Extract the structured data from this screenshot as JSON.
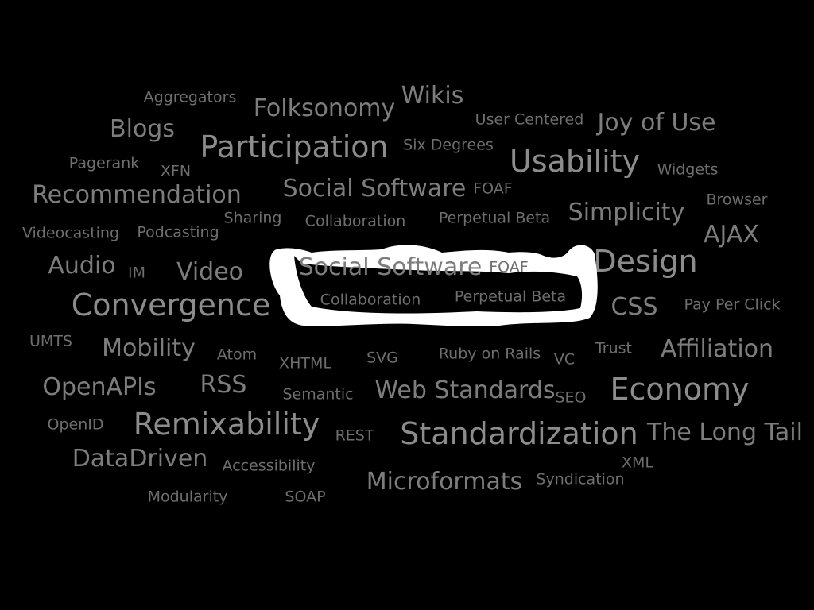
{
  "colors": {
    "background": "#000000",
    "tier_1": "#8c8c8c",
    "tier_2": "#7d7d7d",
    "tier_3": "#6e6e6e",
    "blob": "#ffffff"
  },
  "tags": [
    {
      "text": "Wikis",
      "tier": 2
    },
    {
      "text": "Aggregators",
      "tier": 3
    },
    {
      "text": "Folksonomy",
      "tier": 2
    },
    {
      "text": "User Centered",
      "tier": 3
    },
    {
      "text": "Joy of Use",
      "tier": 2
    },
    {
      "text": "Blogs",
      "tier": 2
    },
    {
      "text": "Participation",
      "tier": 1
    },
    {
      "text": "Six Degrees",
      "tier": 3
    },
    {
      "text": "Usability",
      "tier": 1
    },
    {
      "text": "Pagerank",
      "tier": 3
    },
    {
      "text": "XFN",
      "tier": 3
    },
    {
      "text": "Widgets",
      "tier": 3
    },
    {
      "text": "Recommendation",
      "tier": 2
    },
    {
      "text": "Social Software",
      "tier": 2
    },
    {
      "text": "FOAF",
      "tier": 3
    },
    {
      "text": "Browser",
      "tier": 3
    },
    {
      "text": "Sharing",
      "tier": 3
    },
    {
      "text": "Collaboration",
      "tier": 3
    },
    {
      "text": "Perpetual Beta",
      "tier": 3
    },
    {
      "text": "Simplicity",
      "tier": 2
    },
    {
      "text": "Videocasting",
      "tier": 3
    },
    {
      "text": "Podcasting",
      "tier": 3
    },
    {
      "text": "AJAX",
      "tier": 2
    },
    {
      "text": "Audio",
      "tier": 2
    },
    {
      "text": "IM",
      "tier": 3
    },
    {
      "text": "Video",
      "tier": 2
    },
    {
      "text": "Social Software",
      "tier": 2
    },
    {
      "text": "FOAF",
      "tier": 3
    },
    {
      "text": "Design",
      "tier": 1
    },
    {
      "text": "Convergence",
      "tier": 1
    },
    {
      "text": "Collaboration",
      "tier": 3
    },
    {
      "text": "Perpetual Beta",
      "tier": 3
    },
    {
      "text": "CSS",
      "tier": 2
    },
    {
      "text": "Pay Per Click",
      "tier": 3
    },
    {
      "text": "UMTS",
      "tier": 3
    },
    {
      "text": "Mobility",
      "tier": 2
    },
    {
      "text": "Atom",
      "tier": 3
    },
    {
      "text": "XHTML",
      "tier": 3
    },
    {
      "text": "SVG",
      "tier": 3
    },
    {
      "text": "Ruby on Rails",
      "tier": 3
    },
    {
      "text": "VC",
      "tier": 3
    },
    {
      "text": "Trust",
      "tier": 3
    },
    {
      "text": "Affiliation",
      "tier": 2
    },
    {
      "text": "OpenAPIs",
      "tier": 2
    },
    {
      "text": "RSS",
      "tier": 2
    },
    {
      "text": "Semantic",
      "tier": 3
    },
    {
      "text": "Web Standards",
      "tier": 2
    },
    {
      "text": "SEO",
      "tier": 3
    },
    {
      "text": "Economy",
      "tier": 1
    },
    {
      "text": "OpenID",
      "tier": 3
    },
    {
      "text": "Remixability",
      "tier": 1
    },
    {
      "text": "REST",
      "tier": 3
    },
    {
      "text": "Standardization",
      "tier": 1
    },
    {
      "text": "The Long Tail",
      "tier": 2
    },
    {
      "text": "DataDriven",
      "tier": 2
    },
    {
      "text": "Accessibility",
      "tier": 3
    },
    {
      "text": "XML",
      "tier": 3
    },
    {
      "text": "Microformats",
      "tier": 2
    },
    {
      "text": "Syndication",
      "tier": 3
    },
    {
      "text": "Modularity",
      "tier": 3
    },
    {
      "text": "SOAP",
      "tier": 3
    }
  ]
}
